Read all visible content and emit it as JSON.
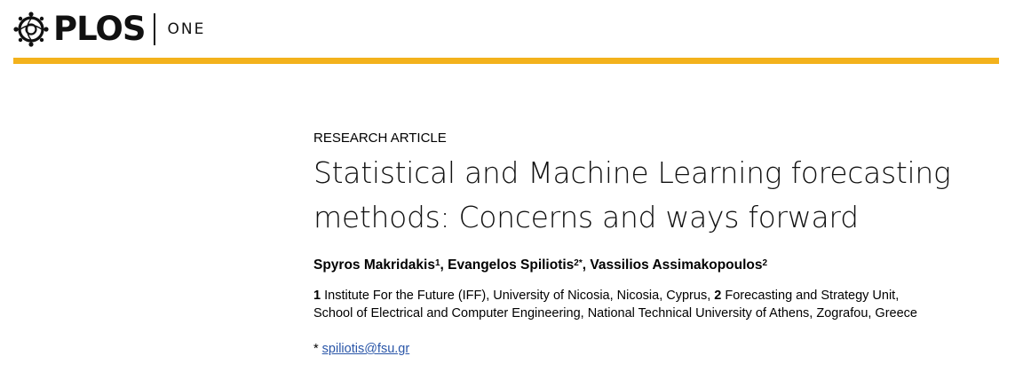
{
  "journal": {
    "brand": "PLOS",
    "sub": "ONE",
    "accent": "#f3b21c",
    "logo_icon": "plos-globe-icon"
  },
  "article": {
    "type": "RESEARCH ARTICLE",
    "title_line1": "Statistical and Machine Learning forecasting",
    "title_line2": "methods: Concerns and ways forward",
    "authors": [
      {
        "name": "Spyros Makridakis",
        "aff": "1"
      },
      {
        "name": "Evangelos Spiliotis",
        "aff": "2",
        "corresponding": "*"
      },
      {
        "name": "Vassilios Assimakopoulos",
        "aff": "2"
      }
    ],
    "separator": ", ",
    "affiliations": {
      "num1": "1",
      "text1": " Institute For the Future (IFF), University of Nicosia, Nicosia, Cyprus, ",
      "num2": "2",
      "text2": " Forecasting and Strategy Unit,",
      "text3": "School of Electrical and Computer Engineering, National Technical University of Athens, Zografou, Greece"
    },
    "correspondence": {
      "mark": "* ",
      "email": "spiliotis@fsu.gr"
    }
  }
}
